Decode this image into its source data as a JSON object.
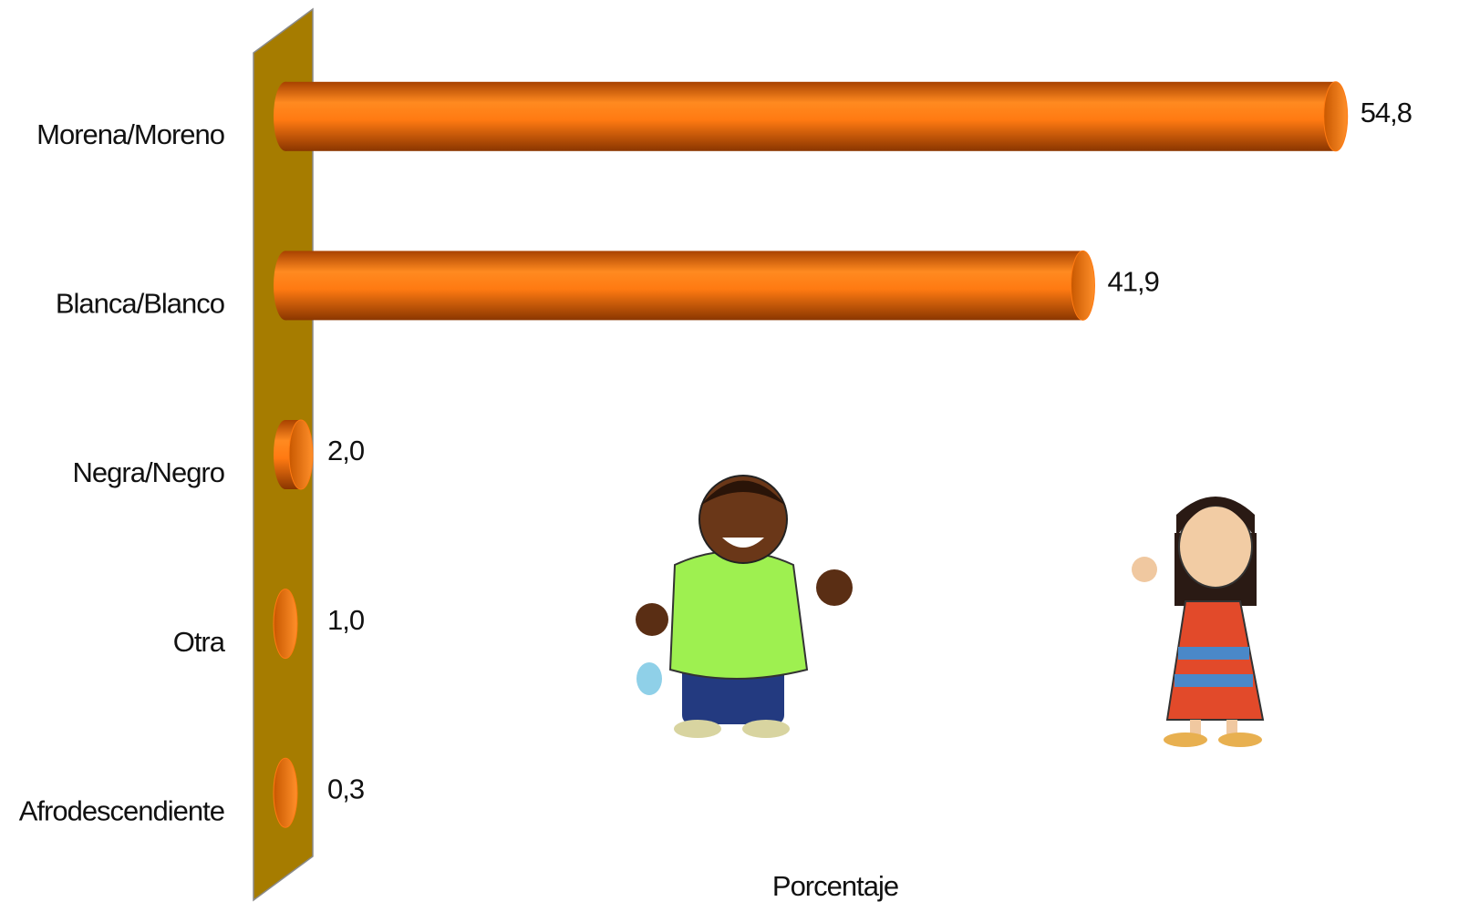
{
  "chart_data": {
    "type": "bar",
    "orientation": "horizontal",
    "categories": [
      "Morena/Moreno",
      "Blanca/Blanco",
      "Negra/Negro",
      "Otra",
      "Afrodescendiente"
    ],
    "values": [
      54.8,
      41.9,
      2.0,
      1.0,
      0.3
    ],
    "value_labels": [
      "54,8",
      "41,9",
      "2,0",
      "1,0",
      "0,3"
    ],
    "xlabel": "Porcentaje",
    "color": "#ff7a12",
    "xlim": [
      0,
      55
    ]
  }
}
